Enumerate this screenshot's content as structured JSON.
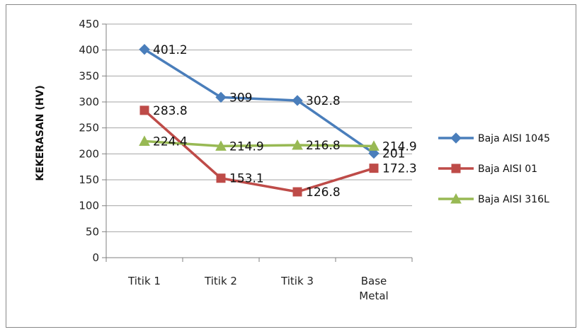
{
  "chart_data": {
    "type": "line",
    "title": "",
    "xlabel": "",
    "ylabel": "KEKERASAN (HV)",
    "categories": [
      "Titik 1",
      "Titik 2",
      "Titik 3",
      "Base Metal"
    ],
    "ylim": [
      0,
      450
    ],
    "yticks": [
      "0",
      "50",
      "100",
      "150",
      "200",
      "250",
      "300",
      "350",
      "400",
      "450"
    ],
    "grid": true,
    "legend_position": "right",
    "series": [
      {
        "name": "Baja AISI 1045",
        "values": [
          401.2,
          309,
          302.8,
          201
        ],
        "labels": [
          "401.2",
          "309",
          "302.8",
          "201"
        ],
        "color": "#4a7ebb",
        "marker": "diamond"
      },
      {
        "name": "Baja AISI 01",
        "values": [
          283.8,
          153.1,
          126.8,
          172.3
        ],
        "labels": [
          "283.8",
          "153.1",
          "126.8",
          "172.3"
        ],
        "color": "#be4b48",
        "marker": "square"
      },
      {
        "name": "Baja AISI 316L",
        "values": [
          224.4,
          214.9,
          216.8,
          214.9
        ],
        "labels": [
          "224.4",
          "214.9",
          "216.8",
          "214.9"
        ],
        "color": "#98b954",
        "marker": "triangle"
      }
    ]
  }
}
